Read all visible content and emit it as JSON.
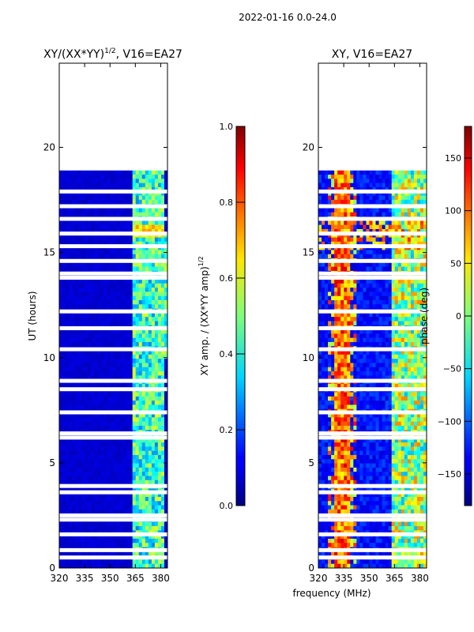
{
  "figure_title": "2022-01-16 0.0-24.0",
  "shared_xlabel": "frequency (MHz)",
  "chart_data": [
    {
      "type": "heatmap",
      "title": "XY/(XX*YY)",
      "title_sup": "1/2",
      "title_suffix": ", V16=EA27",
      "ylabel": "UT (hours)",
      "xlim": [
        320,
        384
      ],
      "ylim": [
        0,
        24
      ],
      "xticks": [
        320,
        335,
        350,
        365,
        380
      ],
      "yticks": [
        0,
        5,
        10,
        15,
        20
      ],
      "data_extent_hours": [
        0,
        18.9
      ],
      "colorbar": {
        "label": "XY amp. / (XX*YY amp)",
        "label_sup": "1/2",
        "range": [
          0.0,
          1.0
        ],
        "ticks": [
          "0.0",
          "0.2",
          "0.4",
          "0.6",
          "0.8",
          "1.0"
        ]
      },
      "gap_rows_hours": [
        0.5,
        0.85,
        1.6,
        2.3,
        2.5,
        3.6,
        3.9,
        6.2,
        6.4,
        7.4,
        8.5,
        8.9,
        10.4,
        11.4,
        12.2,
        13.8,
        14.0,
        14.6,
        15.3,
        15.9,
        16.6,
        17.2,
        17.9
      ]
    },
    {
      "type": "heatmap",
      "title": "XY, V16=EA27",
      "ylabel": "",
      "xlim": [
        320,
        384
      ],
      "ylim": [
        0,
        24
      ],
      "xticks": [
        320,
        335,
        350,
        365,
        380
      ],
      "yticks": [
        0,
        5,
        10,
        15,
        20
      ],
      "data_extent_hours": [
        0,
        18.9
      ],
      "colorbar": {
        "label": "phase (deg)",
        "range": [
          -180,
          180
        ],
        "ticks": [
          "−150",
          "−100",
          "−50",
          "0",
          "50",
          "100",
          "150"
        ],
        "tick_values": [
          -150,
          -100,
          -50,
          0,
          50,
          100,
          150
        ]
      },
      "gap_rows_hours": [
        0.5,
        0.85,
        1.6,
        2.3,
        2.5,
        3.6,
        3.9,
        6.2,
        6.4,
        7.4,
        8.5,
        8.9,
        10.4,
        11.4,
        12.2,
        13.8,
        14.0,
        14.6,
        15.3,
        15.9,
        16.6,
        17.2,
        17.9
      ]
    }
  ]
}
